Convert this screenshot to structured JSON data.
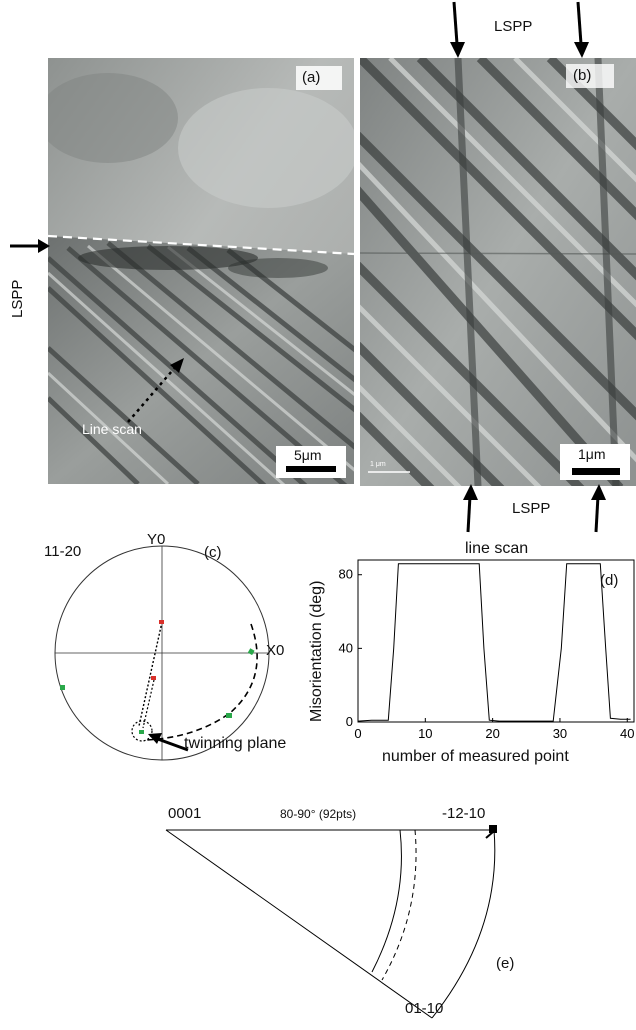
{
  "panel_a": {
    "label": "(a)",
    "side_label": "LSPP",
    "annotation": "Line scan",
    "scale_bar": "5μm"
  },
  "panel_b": {
    "label": "(b)",
    "top_label": "LSPP",
    "bottom_label": "LSPP",
    "scale_bar": "1μm",
    "tiny_scale_text": "1 μm"
  },
  "panel_c": {
    "label": "(c)",
    "direction": "11-20",
    "y_axis": "Y0",
    "x_axis": "X0",
    "annotation": "twinning plane",
    "colors": {
      "red": "#d9302a",
      "green": "#2aa84a"
    }
  },
  "chart_data": {
    "type": "line",
    "title": "line scan",
    "label": "(d)",
    "xlabel": "number of measured point",
    "ylabel": "Misorientation (deg)",
    "xlim": [
      0,
      41
    ],
    "ylim": [
      0,
      88
    ],
    "xticks": [
      "0",
      "10",
      "20",
      "30",
      "40"
    ],
    "yticks": [
      "0",
      "40",
      "80"
    ],
    "series": [
      {
        "x": [
          0,
          2,
          4.5,
          5.3,
          6,
          10,
          14,
          18,
          18.7,
          19.5,
          21,
          25,
          29,
          30.2,
          31,
          34,
          36,
          36.8,
          37.5,
          39,
          40.5
        ],
        "y": [
          0.5,
          1,
          1,
          40,
          86,
          86,
          86,
          86,
          40,
          1,
          0.5,
          0.5,
          0.5,
          40,
          86,
          86,
          86,
          40,
          2,
          1.5,
          1.5
        ]
      }
    ]
  },
  "panel_e": {
    "label": "(e)",
    "corner_top_left": "0001",
    "corner_top_right": "-12-10",
    "corner_bottom": "01-10",
    "range_text": "80-90° (92pts)"
  }
}
